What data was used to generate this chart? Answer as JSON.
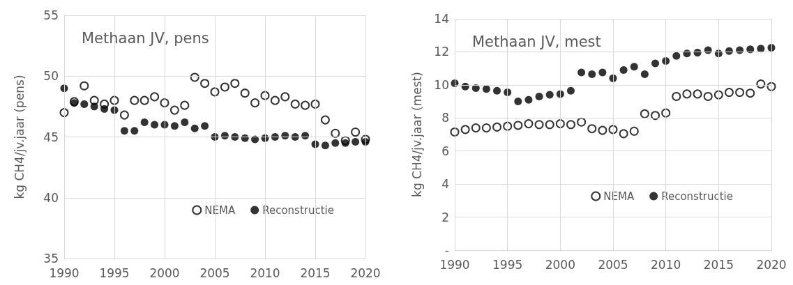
{
  "chart_data": [
    {
      "type": "scatter",
      "title": "Methaan JV, pens",
      "ylabel": "kg CH4/jv.jaar (pens)",
      "x": [
        1990,
        1991,
        1992,
        1993,
        1994,
        1995,
        1996,
        1997,
        1998,
        1999,
        2000,
        2001,
        2002,
        2003,
        2004,
        2005,
        2006,
        2007,
        2008,
        2009,
        2010,
        2011,
        2012,
        2013,
        2014,
        2015,
        2016,
        2017,
        2018,
        2019,
        2020
      ],
      "series": [
        {
          "name": "NEMA",
          "color": "#000000",
          "values": [
            47.0,
            47.9,
            49.2,
            48.0,
            47.7,
            48.0,
            46.8,
            48.0,
            48.0,
            48.3,
            47.8,
            47.2,
            47.6,
            49.9,
            49.4,
            48.7,
            49.1,
            49.4,
            48.6,
            47.8,
            48.4,
            48.0,
            48.3,
            47.7,
            47.6,
            47.7,
            46.4,
            45.3,
            44.7,
            45.4,
            44.8
          ]
        },
        {
          "name": "Reconstructie",
          "color": "#000000",
          "values": [
            49.0,
            47.8,
            47.7,
            47.5,
            47.3,
            47.2,
            45.5,
            45.5,
            46.2,
            46.0,
            46.0,
            45.9,
            46.2,
            45.7,
            45.9,
            45.0,
            45.1,
            45.0,
            44.9,
            44.8,
            44.9,
            45.0,
            45.1,
            45.0,
            45.1,
            44.4,
            44.3,
            44.5,
            44.5,
            44.6,
            44.6
          ]
        }
      ],
      "xlim": [
        1990,
        2020
      ],
      "xticks": [
        1990,
        1995,
        2000,
        2005,
        2010,
        2015,
        2020
      ],
      "ylim": [
        35,
        55
      ],
      "yticks": [
        35,
        40,
        45,
        50,
        55
      ],
      "grid": true,
      "legend": "bottom right",
      "marker": "circle"
    },
    {
      "type": "scatter",
      "title": "Methaan JV, mest",
      "ylabel": "kg CH4/jv.jaar (mest)",
      "x": [
        1990,
        1991,
        1992,
        1993,
        1994,
        1995,
        1996,
        1997,
        1998,
        1999,
        2000,
        2001,
        2002,
        2003,
        2004,
        2005,
        2006,
        2007,
        2008,
        2009,
        2010,
        2011,
        2012,
        2013,
        2014,
        2015,
        2016,
        2017,
        2018,
        2019,
        2020
      ],
      "series": [
        {
          "name": "NEMA",
          "color": "#000000",
          "values": [
            7.15,
            7.3,
            7.4,
            7.4,
            7.45,
            7.5,
            7.55,
            7.65,
            7.6,
            7.6,
            7.65,
            7.6,
            7.75,
            7.35,
            7.25,
            7.3,
            7.05,
            7.2,
            8.25,
            8.15,
            8.3,
            9.3,
            9.45,
            9.45,
            9.3,
            9.4,
            9.55,
            9.55,
            9.5,
            10.05,
            9.9
          ]
        },
        {
          "name": "Reconstructie",
          "color": "#000000",
          "values": [
            10.1,
            9.9,
            9.8,
            9.75,
            9.65,
            9.55,
            9.0,
            9.1,
            9.3,
            9.4,
            9.45,
            9.65,
            10.75,
            10.65,
            10.75,
            10.4,
            10.9,
            11.1,
            10.65,
            11.3,
            11.45,
            11.75,
            11.9,
            11.95,
            12.1,
            11.9,
            12.05,
            12.1,
            12.15,
            12.2,
            12.25
          ]
        }
      ],
      "xlim": [
        1990,
        2020
      ],
      "xticks": [
        1990,
        1995,
        2000,
        2005,
        2010,
        2015,
        2020
      ],
      "ylim": [
        0,
        14
      ],
      "yticks": [
        {
          "value": 0,
          "label": "-"
        },
        2,
        4,
        6,
        8,
        10,
        12,
        14
      ],
      "grid": true,
      "legend": "bottom right",
      "marker": "circle"
    }
  ]
}
